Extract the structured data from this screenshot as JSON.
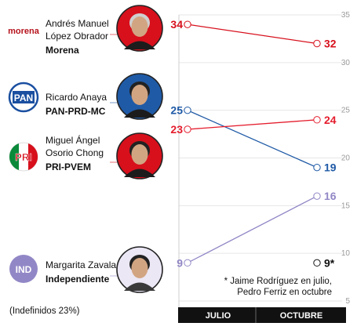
{
  "chart_data": {
    "type": "line",
    "x": [
      "JULIO",
      "OCTUBRE"
    ],
    "ylim": [
      5,
      35
    ],
    "y_ticks": [
      5,
      10,
      15,
      20,
      25,
      30,
      35
    ],
    "grid": true,
    "series": [
      {
        "key": "amlo",
        "name": "Andrés Manuel López Obrador",
        "name_lines": [
          "Andrés Manuel",
          "López Obrador"
        ],
        "party": "Morena",
        "logo_text": "morena",
        "color": "#d7101c",
        "values": [
          34,
          32
        ],
        "labels": [
          "34",
          "32"
        ]
      },
      {
        "key": "anaya",
        "name": "Ricardo Anaya",
        "name_lines": [
          "Ricardo Anaya"
        ],
        "party": "PAN-PRD-MC",
        "logo_text": "PAN",
        "color": "#1f5aa6",
        "values": [
          25,
          19
        ],
        "labels": [
          "25",
          "19"
        ]
      },
      {
        "key": "osorio",
        "name": "Miguel Ángel Osorio Chong",
        "name_lines": [
          "Miguel Ángel",
          "Osorio Chong"
        ],
        "party": "PRI-PVEM",
        "logo_text": "PRI",
        "color": "#e41d2d",
        "values": [
          23,
          24
        ],
        "labels": [
          "23",
          "24"
        ]
      },
      {
        "key": "zavala",
        "name": "Margarita Zavala",
        "name_lines": [
          "Margarita Zavala"
        ],
        "party": "Independiente",
        "logo_text": "IND",
        "color": "#9287c6",
        "values": [
          9,
          16
        ],
        "labels": [
          "9",
          "16"
        ]
      },
      {
        "key": "other",
        "name": "",
        "color": "#111111",
        "values": [
          null,
          9
        ],
        "labels": [
          "",
          "9*"
        ]
      }
    ],
    "footnote_lines": [
      "* Jaime Rodríguez en julio,",
      "Pedro Ferriz en octubre"
    ],
    "undecided": "(Indefinidos 23%)"
  }
}
